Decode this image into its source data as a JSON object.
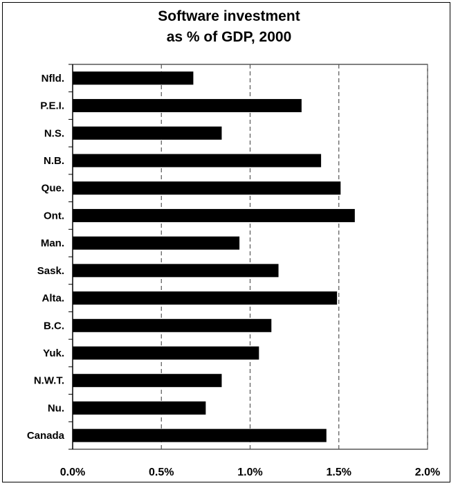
{
  "chart_data": {
    "type": "bar",
    "orientation": "horizontal",
    "title": "Software investment",
    "subtitle": "as % of GDP, 2000",
    "xlabel": "",
    "ylabel": "",
    "categories": [
      "Nfld.",
      "P.E.I.",
      "N.S.",
      "N.B.",
      "Que.",
      "Ont.",
      "Man.",
      "Sask.",
      "Alta.",
      "B.C.",
      "Yuk.",
      "N.W.T.",
      "Nu.",
      "Canada"
    ],
    "values": [
      0.68,
      1.29,
      0.84,
      1.4,
      1.51,
      1.59,
      0.94,
      1.16,
      1.49,
      1.12,
      1.05,
      0.84,
      0.75,
      1.43
    ],
    "xlim": [
      0,
      2.0
    ],
    "xticks": [
      0.0,
      0.5,
      1.0,
      1.5,
      2.0
    ],
    "xtick_labels": [
      "0.0%",
      "0.5%",
      "1.0%",
      "1.5%",
      "2.0%"
    ],
    "grid": "vertical dashed",
    "bar_color": "#000000"
  }
}
